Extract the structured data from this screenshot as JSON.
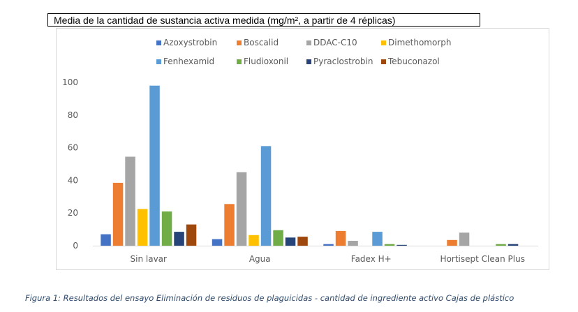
{
  "title": "Media de la cantidad de sustancia activa medida (mg/m², a partir de 4 réplicas)",
  "caption": "Figura 1: Resultados del ensayo Eliminación de residuos de plaguicidas - cantidad de ingrediente activo Cajas de plástico",
  "chart_data": {
    "type": "bar",
    "title": "Media de la cantidad de sustancia activa medida (mg/m², a partir de 4 réplicas)",
    "xlabel": "",
    "ylabel": "",
    "categories": [
      "Sin lavar",
      "Agua",
      "Fadex H+",
      "Hortisept Clean Plus"
    ],
    "ylim": [
      0,
      100
    ],
    "yticks": [
      0,
      20,
      40,
      60,
      80,
      100
    ],
    "grid": false,
    "legend_position": "top",
    "series": [
      {
        "name": "Azoxystrobin",
        "color": "#4472c4",
        "values": [
          7,
          4,
          1,
          0
        ]
      },
      {
        "name": "Boscalid",
        "color": "#ed7d31",
        "values": [
          38.5,
          25.5,
          9,
          3.5
        ]
      },
      {
        "name": "DDAC-C10",
        "color": "#a5a5a5",
        "values": [
          54.5,
          45,
          3,
          8
        ]
      },
      {
        "name": "Dimethomorph",
        "color": "#ffc000",
        "values": [
          22.5,
          6.5,
          0,
          0
        ]
      },
      {
        "name": "Fenhexamid",
        "color": "#5b9bd5",
        "values": [
          98,
          61,
          8.5,
          0
        ]
      },
      {
        "name": "Fludioxonil",
        "color": "#70ad47",
        "values": [
          21,
          9.5,
          1,
          1
        ]
      },
      {
        "name": "Pyraclostrobin",
        "color": "#264478",
        "values": [
          8.5,
          5,
          0.5,
          1
        ]
      },
      {
        "name": "Tebuconazol",
        "color": "#9e480e",
        "values": [
          13,
          5.5,
          0,
          0
        ]
      }
    ]
  }
}
